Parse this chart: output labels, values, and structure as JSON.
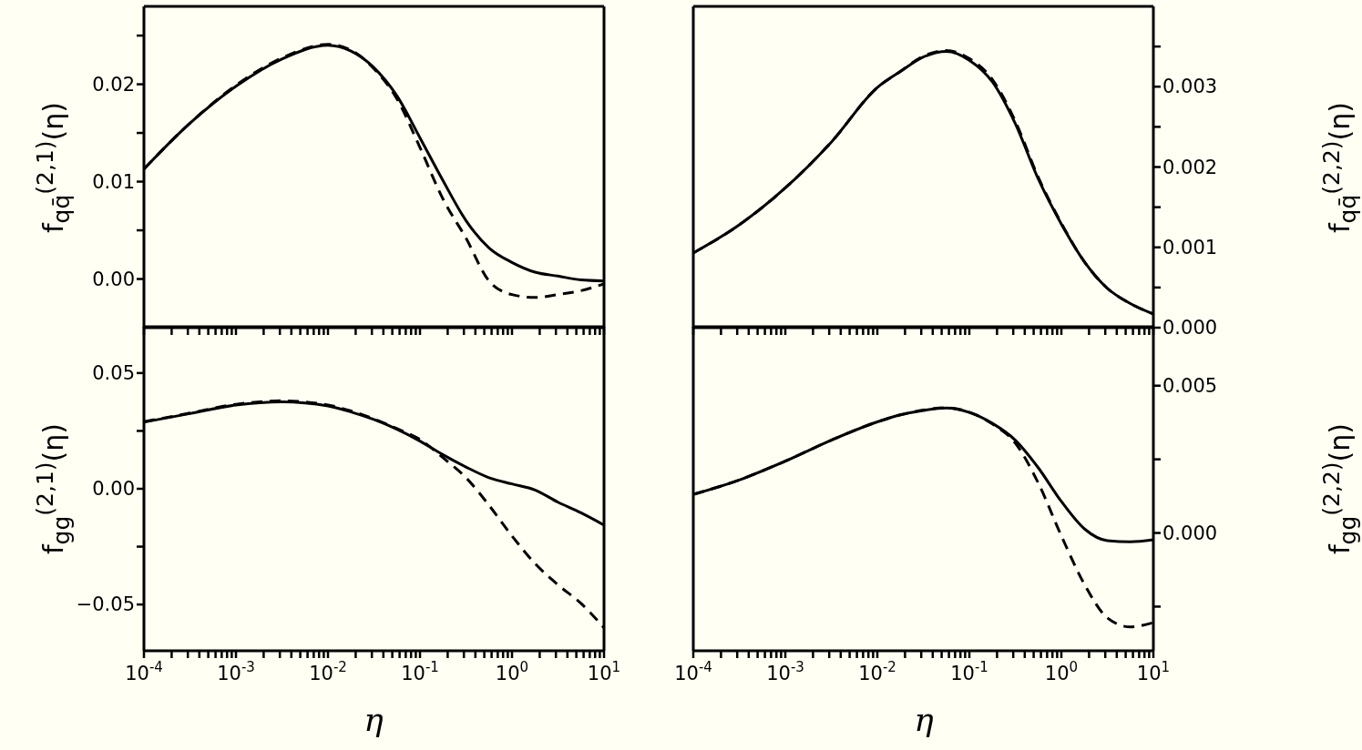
{
  "chart_data": [
    {
      "type": "line",
      "log": "x",
      "tick_labels": "y",
      "ylabel": "f$_{qq̄}$$^{(2,1)}$(η)",
      "x": [
        0.0001,
        0.000316,
        0.001,
        0.00316,
        0.01,
        0.0178,
        0.0316,
        0.0562,
        0.1,
        0.178,
        0.316,
        0.562,
        1,
        1.78,
        3.16,
        5.62,
        10
      ],
      "xlim": [
        0.0001,
        10
      ],
      "xticks": [
        {
          "value": 0.0001,
          "label": null
        },
        {
          "value": 0.0002,
          "label": null
        },
        {
          "value": 0.0003,
          "label": null
        },
        {
          "value": 0.0004,
          "label": null
        },
        {
          "value": 0.0005,
          "label": null
        },
        {
          "value": 0.0006,
          "label": null
        },
        {
          "value": 0.0007,
          "label": null
        },
        {
          "value": 0.0008,
          "label": null
        },
        {
          "value": 0.0009,
          "label": null
        },
        {
          "value": 0.001,
          "label": null
        },
        {
          "value": 0.002,
          "label": null
        },
        {
          "value": 0.003,
          "label": null
        },
        {
          "value": 0.004,
          "label": null
        },
        {
          "value": 0.005,
          "label": null
        },
        {
          "value": 0.006,
          "label": null
        },
        {
          "value": 0.007,
          "label": null
        },
        {
          "value": 0.008,
          "label": null
        },
        {
          "value": 0.009,
          "label": null
        },
        {
          "value": 0.01,
          "label": null
        },
        {
          "value": 0.02,
          "label": null
        },
        {
          "value": 0.03,
          "label": null
        },
        {
          "value": 0.04,
          "label": null
        },
        {
          "value": 0.05,
          "label": null
        },
        {
          "value": 0.06,
          "label": null
        },
        {
          "value": 0.07,
          "label": null
        },
        {
          "value": 0.08,
          "label": null
        },
        {
          "value": 0.09,
          "label": null
        },
        {
          "value": 0.1,
          "label": null
        },
        {
          "value": 0.2,
          "label": null
        },
        {
          "value": 0.3,
          "label": null
        },
        {
          "value": 0.4,
          "label": null
        },
        {
          "value": 0.5,
          "label": null
        },
        {
          "value": 0.6,
          "label": null
        },
        {
          "value": 0.7,
          "label": null
        },
        {
          "value": 0.8,
          "label": null
        },
        {
          "value": 0.9,
          "label": null
        },
        {
          "value": 1,
          "label": null
        },
        {
          "value": 2,
          "label": null
        },
        {
          "value": 3,
          "label": null
        },
        {
          "value": 4,
          "label": null
        },
        {
          "value": 5,
          "label": null
        },
        {
          "value": 6,
          "label": null
        },
        {
          "value": 7,
          "label": null
        },
        {
          "value": 8,
          "label": null
        },
        {
          "value": 9,
          "label": null
        },
        {
          "value": 10,
          "label": null
        }
      ],
      "ylim": [
        -0.005,
        0.028
      ],
      "yticks": [
        {
          "value": 0,
          "label": "0.00"
        },
        {
          "value": 0.005,
          "label": null
        },
        {
          "value": 0.01,
          "label": "0.01"
        },
        {
          "value": 0.015,
          "label": null
        },
        {
          "value": 0.02,
          "label": "0.02"
        },
        {
          "value": 0.025,
          "label": null
        }
      ],
      "series": [
        {
          "color": "#000000",
          "line_style": "solid",
          "values": [
            0.0113,
            0.016,
            0.0198,
            0.0226,
            0.024,
            0.0234,
            0.0217,
            0.0188,
            0.0145,
            0.0101,
            0.006,
            0.0032,
            0.0017,
            0.0007,
            0.0003,
            -0.0001,
            -0.0002
          ]
        },
        {
          "color": "#000000",
          "line_style": "dashed",
          "values": [
            0.0113,
            0.016,
            0.0199,
            0.0227,
            0.0241,
            0.0235,
            0.0216,
            0.0185,
            0.0135,
            0.0082,
            0.0042,
            -0.0002,
            -0.0016,
            -0.0019,
            -0.0016,
            -0.0012,
            -0.0005
          ]
        }
      ]
    },
    {
      "type": "line",
      "log": "x",
      "tick_labels": "y",
      "ylabel": "f$_{qq̄}$$^{(2,2)}$(η)",
      "x": [
        0.0001,
        0.000316,
        0.001,
        0.00316,
        0.01,
        0.0178,
        0.0316,
        0.0562,
        0.1,
        0.178,
        0.316,
        0.562,
        1,
        1.78,
        3.16,
        5.62,
        10
      ],
      "xlim": [
        0.0001,
        10
      ],
      "xticks": [
        {
          "value": 0.0001,
          "label": null
        },
        {
          "value": 0.0002,
          "label": null
        },
        {
          "value": 0.0003,
          "label": null
        },
        {
          "value": 0.0004,
          "label": null
        },
        {
          "value": 0.0005,
          "label": null
        },
        {
          "value": 0.0006,
          "label": null
        },
        {
          "value": 0.0007,
          "label": null
        },
        {
          "value": 0.0008,
          "label": null
        },
        {
          "value": 0.0009,
          "label": null
        },
        {
          "value": 0.001,
          "label": null
        },
        {
          "value": 0.002,
          "label": null
        },
        {
          "value": 0.003,
          "label": null
        },
        {
          "value": 0.004,
          "label": null
        },
        {
          "value": 0.005,
          "label": null
        },
        {
          "value": 0.006,
          "label": null
        },
        {
          "value": 0.007,
          "label": null
        },
        {
          "value": 0.008,
          "label": null
        },
        {
          "value": 0.009,
          "label": null
        },
        {
          "value": 0.01,
          "label": null
        },
        {
          "value": 0.02,
          "label": null
        },
        {
          "value": 0.03,
          "label": null
        },
        {
          "value": 0.04,
          "label": null
        },
        {
          "value": 0.05,
          "label": null
        },
        {
          "value": 0.06,
          "label": null
        },
        {
          "value": 0.07,
          "label": null
        },
        {
          "value": 0.08,
          "label": null
        },
        {
          "value": 0.09,
          "label": null
        },
        {
          "value": 0.1,
          "label": null
        },
        {
          "value": 0.2,
          "label": null
        },
        {
          "value": 0.3,
          "label": null
        },
        {
          "value": 0.4,
          "label": null
        },
        {
          "value": 0.5,
          "label": null
        },
        {
          "value": 0.6,
          "label": null
        },
        {
          "value": 0.7,
          "label": null
        },
        {
          "value": 0.8,
          "label": null
        },
        {
          "value": 0.9,
          "label": null
        },
        {
          "value": 1,
          "label": null
        },
        {
          "value": 2,
          "label": null
        },
        {
          "value": 3,
          "label": null
        },
        {
          "value": 4,
          "label": null
        },
        {
          "value": 5,
          "label": null
        },
        {
          "value": 6,
          "label": null
        },
        {
          "value": 7,
          "label": null
        },
        {
          "value": 8,
          "label": null
        },
        {
          "value": 9,
          "label": null
        },
        {
          "value": 10,
          "label": null
        }
      ],
      "ylim": [
        0,
        0.004
      ],
      "yticks": [
        {
          "value": 0,
          "label": "0.000"
        },
        {
          "value": 0.0005,
          "label": null
        },
        {
          "value": 0.001,
          "label": "0.001"
        },
        {
          "value": 0.0015,
          "label": null
        },
        {
          "value": 0.002,
          "label": "0.002"
        },
        {
          "value": 0.0025,
          "label": null
        },
        {
          "value": 0.003,
          "label": "0.003"
        },
        {
          "value": 0.0035,
          "label": null
        }
      ],
      "series": [
        {
          "color": "#000000",
          "line_style": "solid",
          "values": [
            0.00093,
            0.00128,
            0.00174,
            0.00231,
            0.00299,
            0.00319,
            0.00337,
            0.00344,
            0.00333,
            0.00306,
            0.00254,
            0.00185,
            0.00129,
            0.00082,
            0.00049,
            0.0003,
            0.00017
          ]
        },
        {
          "color": "#000000",
          "line_style": "dashed",
          "values": [
            0.00093,
            0.00128,
            0.00174,
            0.00231,
            0.00299,
            0.00319,
            0.00338,
            0.00345,
            0.00335,
            0.00309,
            0.00257,
            0.00187,
            0.0013,
            0.00082,
            0.00049,
            0.0003,
            0.00017
          ]
        }
      ]
    },
    {
      "type": "line",
      "log": "x",
      "ylabel": "f$_{gg}$$^{(2,1)}$(η)",
      "xlabel": "η",
      "x": [
        0.0001,
        0.000316,
        0.001,
        0.00316,
        0.01,
        0.0178,
        0.0316,
        0.0562,
        0.1,
        0.178,
        0.316,
        0.562,
        1,
        1.78,
        3.16,
        5.62,
        10
      ],
      "xlim": [
        0.0001,
        10
      ],
      "xticks": [
        {
          "value": 0.0001,
          "label": "10$^{-4}$"
        },
        {
          "value": 0.0002,
          "label": null
        },
        {
          "value": 0.0003,
          "label": null
        },
        {
          "value": 0.0004,
          "label": null
        },
        {
          "value": 0.0005,
          "label": null
        },
        {
          "value": 0.0006,
          "label": null
        },
        {
          "value": 0.0007,
          "label": null
        },
        {
          "value": 0.0008,
          "label": null
        },
        {
          "value": 0.0009,
          "label": null
        },
        {
          "value": 0.001,
          "label": "10$^{-3}$"
        },
        {
          "value": 0.002,
          "label": null
        },
        {
          "value": 0.003,
          "label": null
        },
        {
          "value": 0.004,
          "label": null
        },
        {
          "value": 0.005,
          "label": null
        },
        {
          "value": 0.006,
          "label": null
        },
        {
          "value": 0.007,
          "label": null
        },
        {
          "value": 0.008,
          "label": null
        },
        {
          "value": 0.009,
          "label": null
        },
        {
          "value": 0.01,
          "label": "10$^{-2}$"
        },
        {
          "value": 0.02,
          "label": null
        },
        {
          "value": 0.03,
          "label": null
        },
        {
          "value": 0.04,
          "label": null
        },
        {
          "value": 0.05,
          "label": null
        },
        {
          "value": 0.06,
          "label": null
        },
        {
          "value": 0.07,
          "label": null
        },
        {
          "value": 0.08,
          "label": null
        },
        {
          "value": 0.09,
          "label": null
        },
        {
          "value": 0.1,
          "label": "10$^{-1}$"
        },
        {
          "value": 0.2,
          "label": null
        },
        {
          "value": 0.3,
          "label": null
        },
        {
          "value": 0.4,
          "label": null
        },
        {
          "value": 0.5,
          "label": null
        },
        {
          "value": 0.6,
          "label": null
        },
        {
          "value": 0.7,
          "label": null
        },
        {
          "value": 0.8,
          "label": null
        },
        {
          "value": 0.9,
          "label": null
        },
        {
          "value": 1,
          "label": "10$^{0}$"
        },
        {
          "value": 2,
          "label": null
        },
        {
          "value": 3,
          "label": null
        },
        {
          "value": 4,
          "label": null
        },
        {
          "value": 5,
          "label": null
        },
        {
          "value": 6,
          "label": null
        },
        {
          "value": 7,
          "label": null
        },
        {
          "value": 8,
          "label": null
        },
        {
          "value": 9,
          "label": null
        },
        {
          "value": 10,
          "label": "10$^{1}$"
        }
      ],
      "ylim": [
        -0.07,
        0.07
      ],
      "yticks": [
        {
          "value": -0.05,
          "label": "−0.05"
        },
        {
          "value": -0.025,
          "label": null
        },
        {
          "value": 0,
          "label": "0.00"
        },
        {
          "value": 0.025,
          "label": null
        },
        {
          "value": 0.05,
          "label": "0.05"
        }
      ],
      "series": [
        {
          "color": "#000000",
          "line_style": "solid",
          "values": [
            0.0288,
            0.0325,
            0.0362,
            0.0376,
            0.0358,
            0.0332,
            0.0299,
            0.0257,
            0.0206,
            0.0147,
            0.0094,
            0.0048,
            0.0021,
            -0.0005,
            -0.0058,
            -0.0104,
            -0.0157
          ]
        },
        {
          "color": "#000000",
          "line_style": "dashed",
          "values": [
            0.029,
            0.0327,
            0.0365,
            0.038,
            0.0362,
            0.0336,
            0.0302,
            0.026,
            0.0213,
            0.0134,
            0.0048,
            -0.0071,
            -0.0204,
            -0.0323,
            -0.0415,
            -0.0495,
            -0.0601
          ]
        }
      ]
    },
    {
      "type": "line",
      "log": "x",
      "ylabel": "f$_{gg}$$^{(2,2)}$(η)",
      "xlabel": "η",
      "x": [
        0.0001,
        0.000316,
        0.001,
        0.00316,
        0.01,
        0.0178,
        0.0316,
        0.0562,
        0.1,
        0.178,
        0.316,
        0.562,
        1,
        1.78,
        3.16,
        5.62,
        10
      ],
      "xlim": [
        0.0001,
        10
      ],
      "xticks": [
        {
          "value": 0.0001,
          "label": "10$^{-4}$"
        },
        {
          "value": 0.0002,
          "label": null
        },
        {
          "value": 0.0003,
          "label": null
        },
        {
          "value": 0.0004,
          "label": null
        },
        {
          "value": 0.0005,
          "label": null
        },
        {
          "value": 0.0006,
          "label": null
        },
        {
          "value": 0.0007,
          "label": null
        },
        {
          "value": 0.0008,
          "label": null
        },
        {
          "value": 0.0009,
          "label": null
        },
        {
          "value": 0.001,
          "label": "10$^{-3}$"
        },
        {
          "value": 0.002,
          "label": null
        },
        {
          "value": 0.003,
          "label": null
        },
        {
          "value": 0.004,
          "label": null
        },
        {
          "value": 0.005,
          "label": null
        },
        {
          "value": 0.006,
          "label": null
        },
        {
          "value": 0.007,
          "label": null
        },
        {
          "value": 0.008,
          "label": null
        },
        {
          "value": 0.009,
          "label": null
        },
        {
          "value": 0.01,
          "label": "10$^{-2}$"
        },
        {
          "value": 0.02,
          "label": null
        },
        {
          "value": 0.03,
          "label": null
        },
        {
          "value": 0.04,
          "label": null
        },
        {
          "value": 0.05,
          "label": null
        },
        {
          "value": 0.06,
          "label": null
        },
        {
          "value": 0.07,
          "label": null
        },
        {
          "value": 0.08,
          "label": null
        },
        {
          "value": 0.09,
          "label": null
        },
        {
          "value": 0.1,
          "label": "10$^{-1}$"
        },
        {
          "value": 0.2,
          "label": null
        },
        {
          "value": 0.3,
          "label": null
        },
        {
          "value": 0.4,
          "label": null
        },
        {
          "value": 0.5,
          "label": null
        },
        {
          "value": 0.6,
          "label": null
        },
        {
          "value": 0.7,
          "label": null
        },
        {
          "value": 0.8,
          "label": null
        },
        {
          "value": 0.9,
          "label": null
        },
        {
          "value": 1,
          "label": "10$^{0}$"
        },
        {
          "value": 2,
          "label": null
        },
        {
          "value": 3,
          "label": null
        },
        {
          "value": 4,
          "label": null
        },
        {
          "value": 5,
          "label": null
        },
        {
          "value": 6,
          "label": null
        },
        {
          "value": 7,
          "label": null
        },
        {
          "value": 8,
          "label": null
        },
        {
          "value": 9,
          "label": null
        },
        {
          "value": 10,
          "label": "10$^{1}$"
        }
      ],
      "ylim": [
        -0.004,
        0.007
      ],
      "yticks": [
        {
          "value": -0.0025,
          "label": null
        },
        {
          "value": 0,
          "label": "0.000"
        },
        {
          "value": 0.0025,
          "label": null
        },
        {
          "value": 0.005,
          "label": "0.005"
        }
      ],
      "series": [
        {
          "color": "#000000",
          "line_style": "solid",
          "values": [
            0.00131,
            0.0018,
            0.00244,
            0.00315,
            0.00377,
            0.00401,
            0.00416,
            0.00424,
            0.00409,
            0.00372,
            0.00315,
            0.00221,
            0.00107,
            0.00014,
            -0.00026,
            -0.0003,
            -0.00023
          ]
        },
        {
          "color": "#000000",
          "line_style": "dashed",
          "values": [
            0.00131,
            0.0018,
            0.00244,
            0.00315,
            0.00377,
            0.00401,
            0.00417,
            0.00425,
            0.0041,
            0.0037,
            0.00305,
            0.00169,
            -0.0001,
            -0.00174,
            -0.00288,
            -0.00319,
            -0.00304
          ]
        }
      ]
    }
  ]
}
